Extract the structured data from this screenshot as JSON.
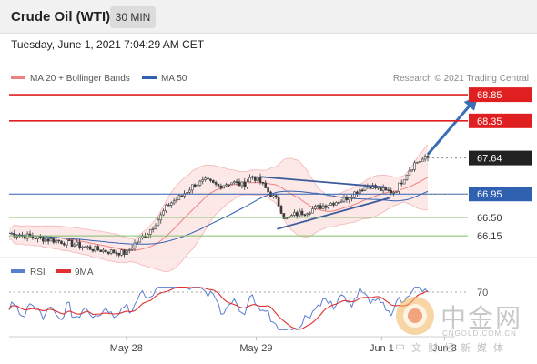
{
  "header": {
    "title": "Crude Oil (WTI)",
    "timeframe": "30 MIN"
  },
  "date_line": "Tuesday, June 1, 2021 7:04:29 AM CET",
  "legend": {
    "bb_label": "MA 20 + Bollinger Bands",
    "ma50_label": "MA 50",
    "credit": "Research © 2021 Trading Central",
    "rsi_label": "RSI",
    "rsi_ma_label": "9MA"
  },
  "colors": {
    "resistance": "#e02020",
    "current": "#222222",
    "support_pivot": "#3060b0",
    "support": "#7fbf6a",
    "bb": "#f08080",
    "ma50": "#3060b0",
    "candle": "#3a3a3a",
    "rsi": "#5b7fd0",
    "rsi_ma": "#e03030",
    "trend_arrow": "#3a6eb5"
  },
  "levels": [
    {
      "value": 68.85,
      "label": "68.85",
      "kind": "resistance"
    },
    {
      "value": 68.35,
      "label": "68.35",
      "kind": "resistance"
    },
    {
      "value": 67.64,
      "label": "67.64",
      "kind": "current"
    },
    {
      "value": 66.95,
      "label": "66.95",
      "kind": "pivot"
    },
    {
      "value": 66.5,
      "label": "66.50",
      "kind": "support"
    },
    {
      "value": 66.15,
      "label": "66.15",
      "kind": "support"
    }
  ],
  "rsi_level": {
    "value": 70,
    "label": "70"
  },
  "chart_data": [
    {
      "type": "line",
      "subtype": "candlestick",
      "series": [
        {
          "name": "MA 20 + Bollinger Bands"
        },
        {
          "name": "MA 50"
        }
      ],
      "x_ticks": [
        "May 28",
        "May 29",
        "Jun 1",
        "Jun 8"
      ],
      "ylim": [
        65.7,
        69.2
      ],
      "close_path": [
        [
          0,
          66.2
        ],
        [
          6,
          66.12
        ],
        [
          12,
          66.05
        ],
        [
          16,
          65.98
        ],
        [
          20,
          65.9
        ],
        [
          24,
          65.85
        ],
        [
          28,
          65.82
        ],
        [
          30,
          66.0
        ],
        [
          33,
          66.2
        ],
        [
          36,
          66.5
        ],
        [
          38,
          66.75
        ],
        [
          41,
          66.9
        ],
        [
          44,
          67.12
        ],
        [
          47,
          67.2
        ],
        [
          50,
          67.1
        ],
        [
          53,
          67.18
        ],
        [
          56,
          67.12
        ],
        [
          58,
          67.3
        ],
        [
          60,
          67.18
        ],
        [
          62,
          66.98
        ],
        [
          64,
          66.82
        ],
        [
          66,
          66.45
        ],
        [
          68,
          66.55
        ],
        [
          71,
          66.62
        ],
        [
          74,
          66.7
        ],
        [
          77,
          66.78
        ],
        [
          80,
          66.85
        ],
        [
          82,
          66.95
        ],
        [
          84,
          67.05
        ],
        [
          86,
          67.12
        ],
        [
          88,
          67.05
        ],
        [
          90,
          67.0
        ],
        [
          92,
          67.0
        ],
        [
          93,
          67.1
        ],
        [
          95,
          67.35
        ],
        [
          97,
          67.55
        ],
        [
          99,
          67.62
        ],
        [
          100,
          67.64
        ]
      ],
      "triangle": {
        "upper": [
          [
            60,
            67.28
          ],
          [
            90,
            67.08
          ]
        ],
        "lower": [
          [
            64,
            66.28
          ],
          [
            91,
            66.88
          ]
        ]
      },
      "projection": {
        "from": [
          100,
          67.64
        ],
        "to": [
          112,
          68.85
        ]
      }
    },
    {
      "type": "line",
      "title": "RSI",
      "series": [
        {
          "name": "RSI"
        },
        {
          "name": "9MA"
        }
      ],
      "ylim": [
        20,
        80
      ],
      "levels": [
        70
      ]
    }
  ]
}
